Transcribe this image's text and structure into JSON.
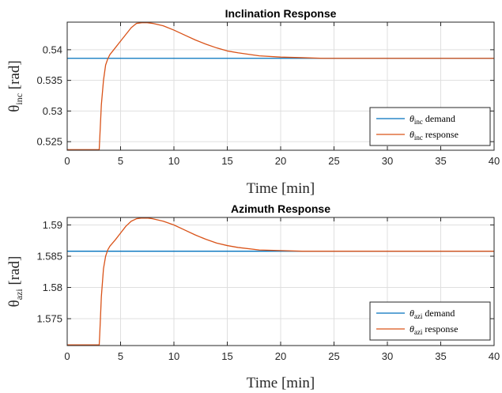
{
  "chart_data": [
    {
      "type": "line",
      "title": "Inclination Response",
      "xlabel": "Time [min]",
      "ylabel": {
        "symbol": "θ",
        "sub": "inc",
        "unit": "[rad]"
      },
      "xlim": [
        0,
        40
      ],
      "ylim": [
        0.5236,
        0.5445
      ],
      "xticks": [
        0,
        5,
        10,
        15,
        20,
        25,
        30,
        35,
        40
      ],
      "yticks": [
        0.525,
        0.53,
        0.535,
        0.54
      ],
      "ytick_labels": [
        "0.525",
        "0.53",
        "0.535",
        "0.54"
      ],
      "grid": true,
      "legend_position": "bottom-right",
      "series": [
        {
          "name": {
            "symbol": "θ",
            "sub": "inc",
            "text": "demand"
          },
          "color": "#0072BD",
          "x": [
            0,
            40
          ],
          "y": [
            0.5386,
            0.5386
          ]
        },
        {
          "name": {
            "symbol": "θ",
            "sub": "inc",
            "text": "response"
          },
          "color": "#D95319",
          "x": [
            0,
            3.0,
            3.05,
            3.2,
            3.4,
            3.6,
            3.8,
            4.0,
            4.5,
            5.0,
            5.5,
            6.0,
            6.5,
            7.0,
            7.5,
            8.0,
            9.0,
            10,
            11,
            12,
            13,
            14,
            15,
            16,
            18,
            20,
            22,
            24,
            26,
            30,
            35,
            40
          ],
          "y": [
            0.5237,
            0.5237,
            0.5255,
            0.531,
            0.535,
            0.5375,
            0.5385,
            0.5392,
            0.5403,
            0.5414,
            0.5425,
            0.5436,
            0.5443,
            0.5444,
            0.5444,
            0.5443,
            0.5439,
            0.5432,
            0.5424,
            0.5416,
            0.5409,
            0.5403,
            0.5398,
            0.5395,
            0.539,
            0.5388,
            0.5387,
            0.5386,
            0.5386,
            0.5386,
            0.5386,
            0.5386
          ]
        }
      ]
    },
    {
      "type": "line",
      "title": "Azimuth Response",
      "xlabel": "Time [min]",
      "ylabel": {
        "symbol": "θ",
        "sub": "azi",
        "unit": "[rad]"
      },
      "xlim": [
        0,
        40
      ],
      "ylim": [
        1.5707,
        1.5912
      ],
      "xticks": [
        0,
        5,
        10,
        15,
        20,
        25,
        30,
        35,
        40
      ],
      "yticks": [
        1.575,
        1.58,
        1.585,
        1.59
      ],
      "ytick_labels": [
        "1.575",
        "1.58",
        "1.585",
        "1.59"
      ],
      "grid": true,
      "legend_position": "bottom-right",
      "series": [
        {
          "name": {
            "symbol": "θ",
            "sub": "azi",
            "text": "demand"
          },
          "color": "#0072BD",
          "x": [
            0,
            40
          ],
          "y": [
            1.5858,
            1.5858
          ]
        },
        {
          "name": {
            "symbol": "θ",
            "sub": "azi",
            "text": "response"
          },
          "color": "#D95319",
          "x": [
            0,
            3.0,
            3.05,
            3.2,
            3.4,
            3.6,
            3.8,
            4.0,
            4.5,
            5.0,
            5.5,
            6.0,
            6.5,
            7.0,
            7.5,
            8.0,
            9.0,
            10,
            11,
            12,
            13,
            14,
            15,
            16,
            18,
            20,
            22,
            24,
            26,
            30,
            35,
            40
          ],
          "y": [
            1.5708,
            1.5708,
            1.5725,
            1.5785,
            1.583,
            1.585,
            1.586,
            1.5866,
            1.5876,
            1.5887,
            1.5898,
            1.5906,
            1.591,
            1.5911,
            1.5911,
            1.591,
            1.5906,
            1.59,
            1.5892,
            1.5884,
            1.5877,
            1.5871,
            1.5867,
            1.5864,
            1.586,
            1.5859,
            1.5858,
            1.5858,
            1.5858,
            1.5858,
            1.5858,
            1.5858
          ]
        }
      ]
    }
  ]
}
